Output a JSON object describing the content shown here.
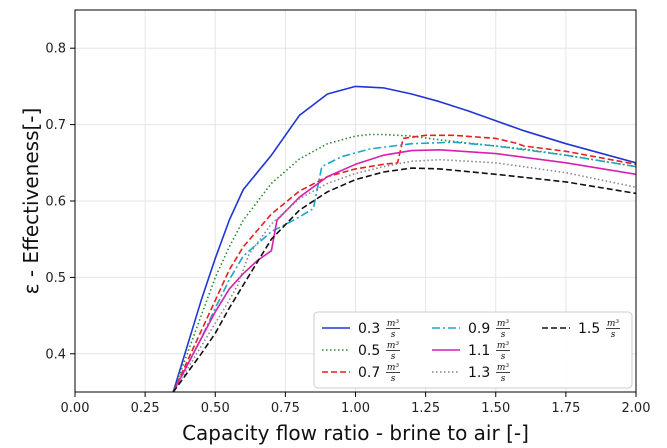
{
  "chart_data": {
    "type": "line",
    "xlabel": "Capacity flow ratio - brine to air [-]",
    "ylabel": "ε - Effectiveness[-]",
    "xlim": [
      0.0,
      2.0
    ],
    "ylim": [
      0.35,
      0.85
    ],
    "xticks": [
      "0.00",
      "0.25",
      "0.50",
      "0.75",
      "1.00",
      "1.25",
      "1.50",
      "1.75",
      "2.00"
    ],
    "yticks": [
      "0.4",
      "0.5",
      "0.6",
      "0.7",
      "0.8"
    ],
    "grid": true,
    "legend_position": "bottom-right",
    "legend_unit": {
      "numerator": "m³",
      "denominator": "s"
    },
    "series": [
      {
        "name": "0.3",
        "color": "#1f35d6",
        "dash": "solid",
        "points": [
          [
            0.35,
            0.35
          ],
          [
            0.4,
            0.41
          ],
          [
            0.45,
            0.47
          ],
          [
            0.5,
            0.525
          ],
          [
            0.55,
            0.575
          ],
          [
            0.6,
            0.615
          ],
          [
            0.7,
            0.66
          ],
          [
            0.8,
            0.712
          ],
          [
            0.9,
            0.74
          ],
          [
            1.0,
            0.75
          ],
          [
            1.1,
            0.748
          ],
          [
            1.2,
            0.74
          ],
          [
            1.3,
            0.73
          ],
          [
            1.4,
            0.718
          ],
          [
            1.5,
            0.705
          ],
          [
            1.6,
            0.692
          ],
          [
            1.75,
            0.675
          ],
          [
            2.0,
            0.65
          ]
        ]
      },
      {
        "name": "0.5",
        "color": "#2a8a2a",
        "dash": "dotted",
        "points": [
          [
            0.35,
            0.35
          ],
          [
            0.4,
            0.4
          ],
          [
            0.45,
            0.45
          ],
          [
            0.5,
            0.5
          ],
          [
            0.55,
            0.54
          ],
          [
            0.6,
            0.575
          ],
          [
            0.7,
            0.623
          ],
          [
            0.8,
            0.655
          ],
          [
            0.9,
            0.675
          ],
          [
            1.0,
            0.685
          ],
          [
            1.05,
            0.687
          ],
          [
            1.1,
            0.687
          ],
          [
            1.2,
            0.685
          ],
          [
            1.3,
            0.68
          ],
          [
            1.4,
            0.676
          ],
          [
            1.5,
            0.672
          ],
          [
            1.6,
            0.668
          ],
          [
            1.75,
            0.66
          ],
          [
            2.0,
            0.645
          ]
        ]
      },
      {
        "name": "0.7",
        "color": "#e62020",
        "dash": "dashed",
        "points": [
          [
            0.35,
            0.35
          ],
          [
            0.4,
            0.39
          ],
          [
            0.45,
            0.43
          ],
          [
            0.5,
            0.47
          ],
          [
            0.55,
            0.51
          ],
          [
            0.6,
            0.54
          ],
          [
            0.7,
            0.583
          ],
          [
            0.8,
            0.613
          ],
          [
            0.9,
            0.632
          ],
          [
            1.0,
            0.642
          ],
          [
            1.1,
            0.648
          ],
          [
            1.15,
            0.65
          ],
          [
            1.17,
            0.682
          ],
          [
            1.25,
            0.686
          ],
          [
            1.35,
            0.686
          ],
          [
            1.5,
            0.682
          ],
          [
            1.58,
            0.675
          ],
          [
            1.6,
            0.672
          ],
          [
            1.75,
            0.665
          ],
          [
            2.0,
            0.648
          ]
        ]
      },
      {
        "name": "0.9",
        "color": "#1aa6c8",
        "dash": "dashdot",
        "points": [
          [
            0.35,
            0.35
          ],
          [
            0.4,
            0.385
          ],
          [
            0.45,
            0.42
          ],
          [
            0.5,
            0.46
          ],
          [
            0.55,
            0.497
          ],
          [
            0.6,
            0.528
          ],
          [
            0.7,
            0.56
          ],
          [
            0.78,
            0.575
          ],
          [
            0.85,
            0.59
          ],
          [
            0.88,
            0.645
          ],
          [
            0.95,
            0.658
          ],
          [
            1.05,
            0.668
          ],
          [
            1.2,
            0.675
          ],
          [
            1.35,
            0.677
          ],
          [
            1.5,
            0.672
          ],
          [
            1.75,
            0.66
          ],
          [
            2.0,
            0.645
          ]
        ]
      },
      {
        "name": "1.1",
        "color": "#d81fb2",
        "dash": "solid",
        "points": [
          [
            0.35,
            0.35
          ],
          [
            0.4,
            0.385
          ],
          [
            0.45,
            0.42
          ],
          [
            0.5,
            0.455
          ],
          [
            0.55,
            0.485
          ],
          [
            0.6,
            0.505
          ],
          [
            0.65,
            0.522
          ],
          [
            0.7,
            0.535
          ],
          [
            0.72,
            0.575
          ],
          [
            0.8,
            0.605
          ],
          [
            0.9,
            0.632
          ],
          [
            1.0,
            0.648
          ],
          [
            1.1,
            0.66
          ],
          [
            1.2,
            0.666
          ],
          [
            1.3,
            0.667
          ],
          [
            1.5,
            0.662
          ],
          [
            1.75,
            0.65
          ],
          [
            2.0,
            0.635
          ]
        ]
      },
      {
        "name": "1.3",
        "color": "#888888",
        "dash": "dotted",
        "points": [
          [
            0.35,
            0.35
          ],
          [
            0.4,
            0.38
          ],
          [
            0.45,
            0.41
          ],
          [
            0.5,
            0.44
          ],
          [
            0.55,
            0.47
          ],
          [
            0.58,
            0.49
          ],
          [
            0.62,
            0.53
          ],
          [
            0.7,
            0.57
          ],
          [
            0.8,
            0.603
          ],
          [
            0.9,
            0.623
          ],
          [
            1.0,
            0.636
          ],
          [
            1.1,
            0.645
          ],
          [
            1.2,
            0.652
          ],
          [
            1.3,
            0.654
          ],
          [
            1.5,
            0.65
          ],
          [
            1.75,
            0.637
          ],
          [
            2.0,
            0.618
          ]
        ]
      },
      {
        "name": "1.5",
        "color": "#111111",
        "dash": "dashed",
        "points": [
          [
            0.35,
            0.35
          ],
          [
            0.4,
            0.375
          ],
          [
            0.45,
            0.4
          ],
          [
            0.5,
            0.427
          ],
          [
            0.55,
            0.46
          ],
          [
            0.6,
            0.49
          ],
          [
            0.65,
            0.52
          ],
          [
            0.7,
            0.55
          ],
          [
            0.8,
            0.588
          ],
          [
            0.9,
            0.612
          ],
          [
            1.0,
            0.628
          ],
          [
            1.1,
            0.638
          ],
          [
            1.2,
            0.643
          ],
          [
            1.3,
            0.642
          ],
          [
            1.5,
            0.635
          ],
          [
            1.75,
            0.625
          ],
          [
            2.0,
            0.61
          ]
        ]
      }
    ]
  }
}
